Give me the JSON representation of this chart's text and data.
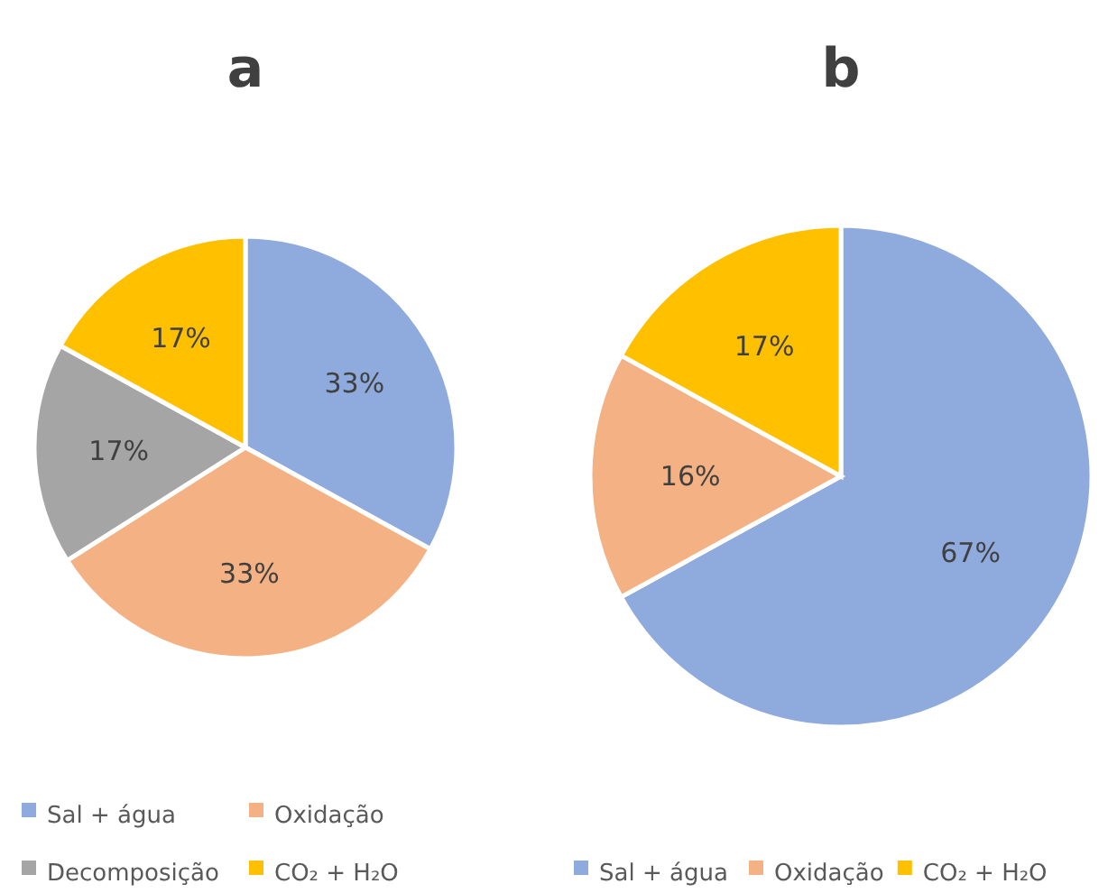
{
  "chart_data": [
    {
      "type": "pie",
      "title": "a",
      "categories": [
        "Sal + água",
        "Oxidação",
        "Decomposição",
        "CO₂ + H₂O"
      ],
      "values": [
        33,
        33,
        17,
        17
      ],
      "value_labels": [
        "33%",
        "33%",
        "17%",
        "17%"
      ],
      "colors": [
        "#8faadc",
        "#f4b183",
        "#a5a5a5",
        "#ffc000"
      ],
      "legend": "bottom"
    },
    {
      "type": "pie",
      "title": "b",
      "categories": [
        "Sal + água",
        "Oxidação",
        "CO₂ + H₂O"
      ],
      "values": [
        67,
        16,
        17
      ],
      "value_labels": [
        "67%",
        "16%",
        "17%"
      ],
      "colors": [
        "#8faadc",
        "#f4b183",
        "#ffc000"
      ],
      "legend": "bottom"
    }
  ]
}
